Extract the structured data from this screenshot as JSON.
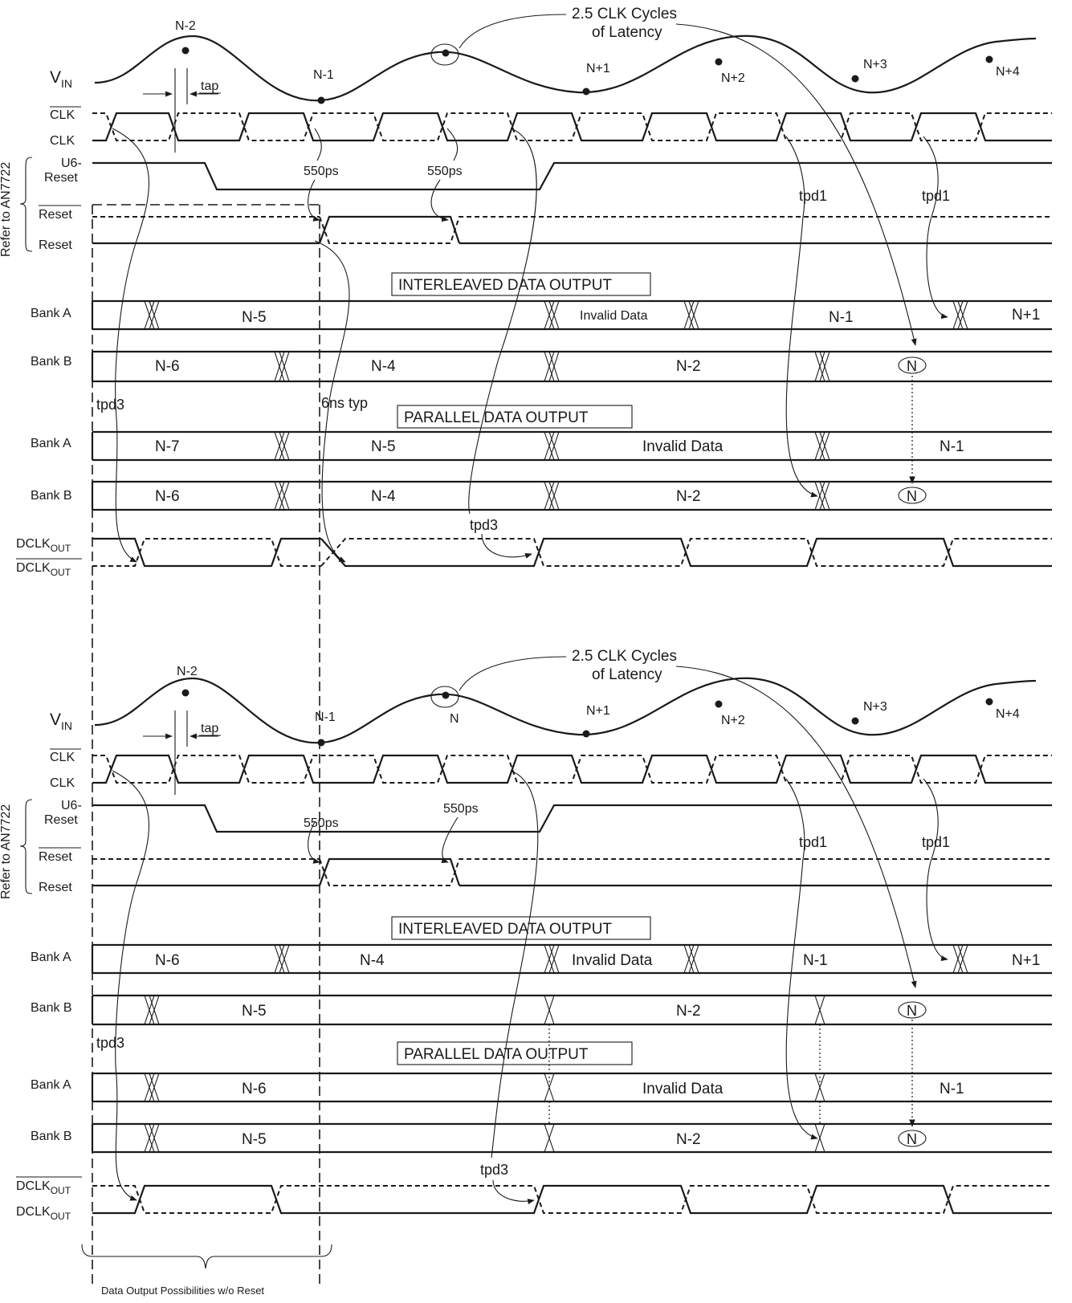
{
  "annotations": {
    "latency_line1": "2.5 CLK Cycles",
    "latency_line2": "of Latency",
    "side_label": "Refer to AN7722",
    "tap": "tap",
    "ps550": "550ps",
    "tpd1": "tpd1",
    "tpd3": "tpd3",
    "ns6": "6ns typ",
    "brace_caption": "Data Output Possibilities w/o Reset"
  },
  "signals": {
    "vin_main": "V",
    "vin_sub": "IN",
    "clk_bar": "CLK",
    "clk": "CLK",
    "u6_line1": "U6-",
    "u6_line2": "Reset",
    "reset_bar": "Reset",
    "reset": "Reset",
    "bank_a": "Bank A",
    "bank_b": "Bank B",
    "dclk_main": "DCLK",
    "dclk_sub": "OUT"
  },
  "sections": {
    "interleaved": "INTERLEAVED DATA OUTPUT",
    "parallel": "PARALLEL DATA OUTPUT"
  },
  "sample_points": [
    "N-2",
    "N-1",
    "N",
    "N+1",
    "N+2",
    "N+3",
    "N+4"
  ],
  "panels": [
    {
      "interleaved_a": [
        "N-5",
        "Invalid Data",
        "N-1",
        "N+1"
      ],
      "interleaved_b": [
        "N-6",
        "N-4",
        "N-2",
        "N"
      ],
      "parallel_a": [
        "N-7",
        "N-5",
        "Invalid Data",
        "N-1"
      ],
      "parallel_b": [
        "N-6",
        "N-4",
        "N-2",
        "N"
      ]
    },
    {
      "interleaved_a": [
        "N-6",
        "N-4",
        "Invalid Data",
        "N-1",
        "N+1"
      ],
      "interleaved_b": [
        "N-5",
        "N-2",
        "N"
      ],
      "parallel_a": [
        "N-6",
        "Invalid Data",
        "N-1"
      ],
      "parallel_b": [
        "N-5",
        "N-2",
        "N"
      ]
    }
  ]
}
